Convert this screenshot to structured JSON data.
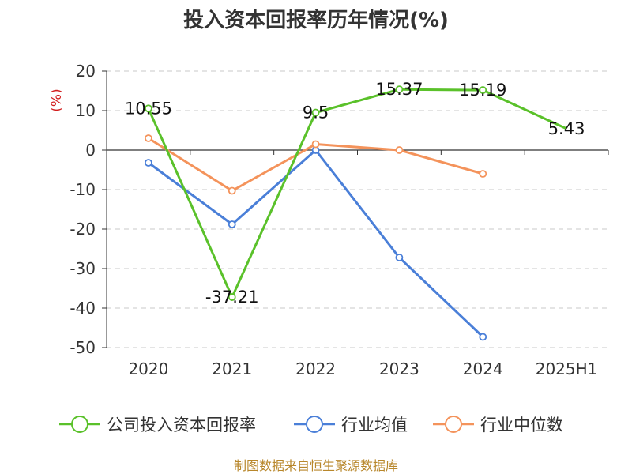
{
  "chart_data": {
    "type": "line",
    "title": "投入资本回报率历年情况(%)",
    "ylabel": "(%)",
    "xlabel": "",
    "categories": [
      "2020",
      "2021",
      "2022",
      "2023",
      "2024",
      "2025H1"
    ],
    "ylim": [
      -50,
      20
    ],
    "yticks": [
      20,
      10,
      0,
      -10,
      -20,
      -30,
      -40,
      -50
    ],
    "grid": true,
    "legend_position": "bottom",
    "series": [
      {
        "name": "公司投入资本回报率",
        "color": "#5ac12a",
        "values": [
          10.55,
          -37.21,
          9.5,
          15.37,
          15.19,
          5.43
        ],
        "labels": [
          "10.55",
          "-37.21",
          "9.5",
          "15.37",
          "15.19",
          "5.43"
        ]
      },
      {
        "name": "行业均值",
        "color": "#4a7fd8",
        "values": [
          -3.2,
          -18.8,
          0.0,
          -27.2,
          -47.3,
          null
        ]
      },
      {
        "name": "行业中位数",
        "color": "#f4935b",
        "values": [
          3.0,
          -10.3,
          1.5,
          0.0,
          -6.0,
          null
        ]
      }
    ]
  },
  "source": "制图数据来自恒生聚源数据库"
}
